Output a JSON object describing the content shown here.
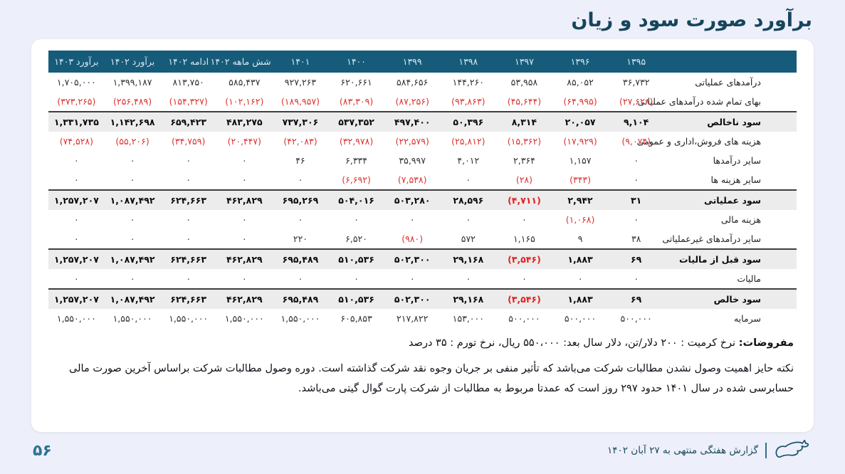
{
  "page": {
    "title": "برآورد صورت سود و زیان",
    "page_number": "۵۶",
    "footer_text": "گزارش هفتگی منتهی به ۲۷ آبان ۱۴۰۲"
  },
  "colors": {
    "page_background": "#edeffa",
    "card_background": "#ffffff",
    "table_header_background": "#175b7a",
    "title_color": "#16465c",
    "negative_value_color": "#dd3330",
    "total_row_background": "#ececec"
  },
  "table": {
    "columns": [
      "",
      "۱۳۹۵",
      "۱۳۹۶",
      "۱۳۹۷",
      "۱۳۹۸",
      "۱۳۹۹",
      "۱۴۰۰",
      "۱۴۰۱",
      "شش ماهه ۱۴۰۲",
      "ادامه ۱۴۰۲",
      "برآورد ۱۴۰۲",
      "برآورد ۱۴۰۳"
    ],
    "rows": [
      {
        "label": "درآمدهای عملیاتی",
        "style": "normal",
        "values": [
          "۳۶,۷۳۲",
          "۸۵,۰۵۲",
          "۵۳,۹۵۸",
          "۱۴۴,۲۶۰",
          "۵۸۴,۶۵۶",
          "۶۲۰,۶۶۱",
          "۹۲۷,۲۶۳",
          "۵۸۵,۴۳۷",
          "۸۱۳,۷۵۰",
          "۱,۳۹۹,۱۸۷",
          "۱,۷۰۵,۰۰۰"
        ]
      },
      {
        "label": "بهای تمام شده درآمدهای عملیاتی",
        "style": "normal",
        "values": [
          "(۲۷,۶۲۸)",
          "(۶۴,۹۹۵)",
          "(۴۵,۶۴۴)",
          "(۹۳,۸۶۳)",
          "(۸۷,۲۵۶)",
          "(۸۳,۳۰۹)",
          "(۱۸۹,۹۵۷)",
          "(۱۰۲,۱۶۲)",
          "(۱۵۴,۳۲۷)",
          "(۲۵۶,۴۸۹)",
          "(۳۷۳,۲۶۵)"
        ]
      },
      {
        "label": "سود ناخالص",
        "style": "total",
        "values": [
          "۹,۱۰۴",
          "۲۰,۰۵۷",
          "۸,۳۱۴",
          "۵۰,۳۹۶",
          "۴۹۷,۴۰۰",
          "۵۳۷,۳۵۲",
          "۷۳۷,۳۰۶",
          "۴۸۳,۲۷۵",
          "۶۵۹,۴۲۳",
          "۱,۱۴۲,۶۹۸",
          "۱,۳۳۱,۷۳۵"
        ]
      },
      {
        "label": "هزینه های فروش،اداری و عمومی",
        "style": "normal",
        "values": [
          "(۹,۰۷۴)",
          "(۱۷,۹۲۹)",
          "(۱۵,۳۶۲)",
          "(۲۵,۸۱۲)",
          "(۲۲,۵۷۹)",
          "(۳۲,۹۷۸)",
          "(۴۲,۰۸۳)",
          "(۲۰,۴۴۷)",
          "(۳۴,۷۵۹)",
          "(۵۵,۲۰۶)",
          "(۷۴,۵۲۸)"
        ]
      },
      {
        "label": "سایر درآمدها",
        "style": "normal",
        "values": [
          "۰",
          "۱,۱۵۷",
          "۲,۳۶۴",
          "۴,۰۱۲",
          "۳۵,۹۹۷",
          "۶,۳۳۴",
          "۴۶",
          "۰",
          "۰",
          "۰",
          "۰"
        ]
      },
      {
        "label": "سایر هزینه ها",
        "style": "normal",
        "values": [
          "۰",
          "(۳۴۳)",
          "(۲۸)",
          "۰",
          "(۷,۵۳۸)",
          "(۶,۶۹۲)",
          "۰",
          "۰",
          "۰",
          "۰",
          "۰"
        ]
      },
      {
        "label": "سود عملیاتی",
        "style": "total",
        "values": [
          "۳۱",
          "۲,۹۴۲",
          "(۴,۷۱۱)",
          "۲۸,۵۹۶",
          "۵۰۳,۲۸۰",
          "۵۰۴,۰۱۶",
          "۶۹۵,۲۶۹",
          "۴۶۲,۸۲۹",
          "۶۲۴,۶۶۳",
          "۱,۰۸۷,۴۹۲",
          "۱,۲۵۷,۲۰۷"
        ]
      },
      {
        "label": "هزینه مالی",
        "style": "normal",
        "values": [
          "۰",
          "(۱,۰۶۸)",
          "۰",
          "۰",
          "۰",
          "۰",
          "۰",
          "۰",
          "۰",
          "۰",
          "۰"
        ]
      },
      {
        "label": "سایر درآمدهای غیرعملیاتی",
        "style": "normal",
        "values": [
          "۳۸",
          "۹",
          "۱,۱۶۵",
          "۵۷۲",
          "(۹۸۰)",
          "۶,۵۲۰",
          "۲۲۰",
          "۰",
          "۰",
          "۰",
          "۰"
        ]
      },
      {
        "label": "سود قبل از مالیات",
        "style": "total",
        "values": [
          "۶۹",
          "۱,۸۸۳",
          "(۳,۵۴۶)",
          "۲۹,۱۶۸",
          "۵۰۲,۳۰۰",
          "۵۱۰,۵۳۶",
          "۶۹۵,۴۸۹",
          "۴۶۲,۸۲۹",
          "۶۲۴,۶۶۳",
          "۱,۰۸۷,۴۹۲",
          "۱,۲۵۷,۲۰۷"
        ]
      },
      {
        "label": "مالیات",
        "style": "normal",
        "values": [
          "۰",
          "۰",
          "۰",
          "۰",
          "۰",
          "۰",
          "۰",
          "۰",
          "۰",
          "۰",
          "۰"
        ]
      },
      {
        "label": "سود خالص",
        "style": "total",
        "values": [
          "۶۹",
          "۱,۸۸۳",
          "(۳,۵۴۶)",
          "۲۹,۱۶۸",
          "۵۰۲,۳۰۰",
          "۵۱۰,۵۳۶",
          "۶۹۵,۴۸۹",
          "۴۶۲,۸۲۹",
          "۶۲۴,۶۶۳",
          "۱,۰۸۷,۴۹۲",
          "۱,۲۵۷,۲۰۷"
        ]
      },
      {
        "label": "سرمایه",
        "style": "normal",
        "values": [
          "۵۰۰,۰۰۰",
          "۵۰۰,۰۰۰",
          "۵۰۰,۰۰۰",
          "۱۵۳,۰۰۰",
          "۲۱۷,۸۲۲",
          "۶۰۵,۸۵۳",
          "۱,۵۵۰,۰۰۰",
          "۱,۵۵۰,۰۰۰",
          "۱,۵۵۰,۰۰۰",
          "۱,۵۵۰,۰۰۰",
          "۱,۵۵۰,۰۰۰"
        ]
      }
    ]
  },
  "notes": {
    "assumptions_label": "مفروضات:",
    "assumptions_text": " نرخ کرمیت : ۲۰۰ دلار/تن، دلار سال بعد: ۵۵۰،۰۰۰ ریال، نرخ تورم : ۳۵ درصد",
    "paragraph": "نکته حایز اهمیت وصول نشدن مطالبات شرکت می‌باشد که تأثیر منفی بر جریان وجوه نقد شرکت گذاشته است. دوره وصول مطالبات شرکت براساس آخرین صورت مالی حسابرسی شده در سال ۱۴۰۱ حدود ۲۹۷ روز است که عمدتا مربوط به مطالبات از شرکت پارت گوال گیتی می‌باشد."
  }
}
